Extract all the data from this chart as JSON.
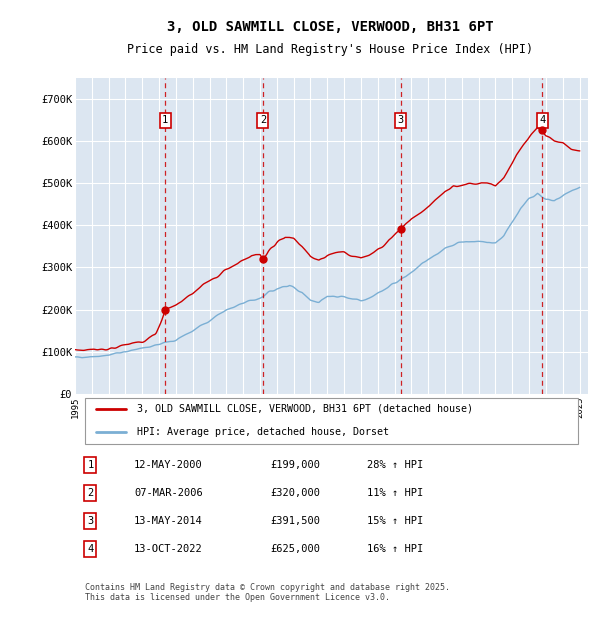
{
  "title": "3, OLD SAWMILL CLOSE, VERWOOD, BH31 6PT",
  "subtitle": "Price paid vs. HM Land Registry's House Price Index (HPI)",
  "plot_bg_color": "#dce6f1",
  "grid_color": "#ffffff",
  "ylim": [
    0,
    750000
  ],
  "yticks": [
    0,
    100000,
    200000,
    300000,
    400000,
    500000,
    600000,
    700000
  ],
  "ytick_labels": [
    "£0",
    "£100K",
    "£200K",
    "£300K",
    "£400K",
    "£500K",
    "£600K",
    "£700K"
  ],
  "hpi_color": "#7bafd4",
  "price_color": "#cc0000",
  "sale_years": [
    2000.37,
    2006.17,
    2014.37,
    2022.79
  ],
  "sale_prices": [
    199000,
    320000,
    391500,
    625000
  ],
  "sale_labels": [
    "1",
    "2",
    "3",
    "4"
  ],
  "legend_price_label": "3, OLD SAWMILL CLOSE, VERWOOD, BH31 6PT (detached house)",
  "legend_hpi_label": "HPI: Average price, detached house, Dorset",
  "table_rows": [
    [
      "1",
      "12-MAY-2000",
      "£199,000",
      "28% ↑ HPI"
    ],
    [
      "2",
      "07-MAR-2006",
      "£320,000",
      "11% ↑ HPI"
    ],
    [
      "3",
      "13-MAY-2014",
      "£391,500",
      "15% ↑ HPI"
    ],
    [
      "4",
      "13-OCT-2022",
      "£625,000",
      "16% ↑ HPI"
    ]
  ],
  "footer": "Contains HM Land Registry data © Crown copyright and database right 2025.\nThis data is licensed under the Open Government Licence v3.0."
}
